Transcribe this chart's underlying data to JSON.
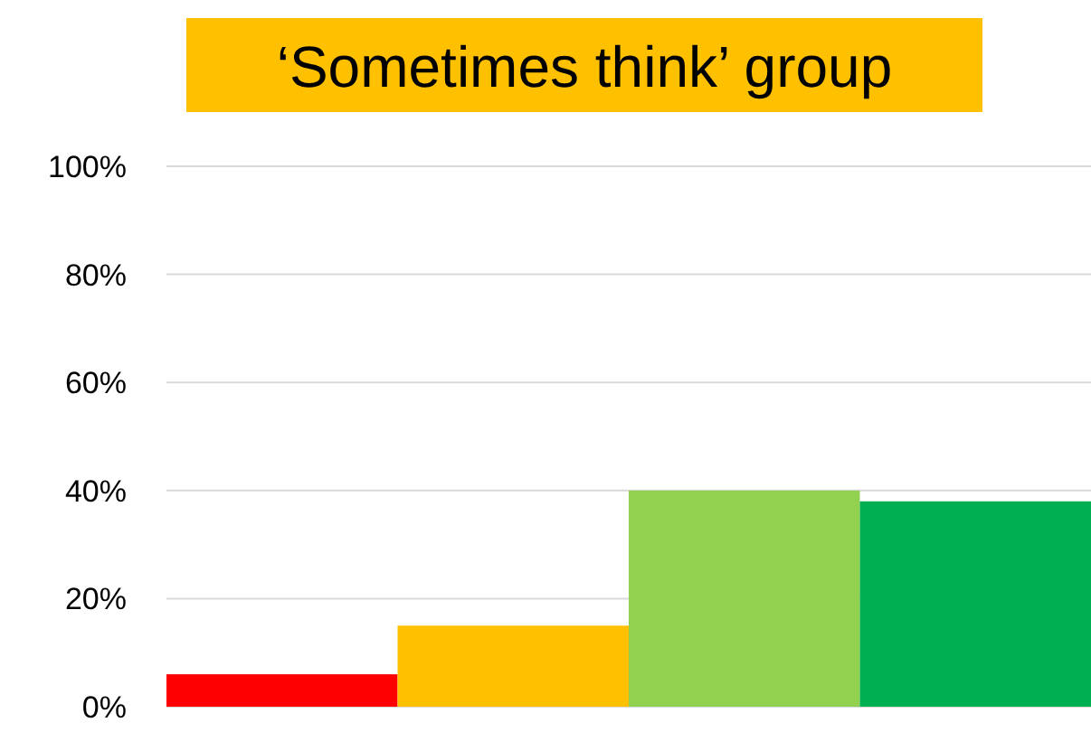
{
  "chart_data": {
    "type": "bar",
    "title": "‘Sometimes think’ group",
    "categories": [
      null,
      null,
      null,
      null
    ],
    "values": [
      6,
      15,
      40,
      38
    ],
    "colors": [
      "#ff0000",
      "#ffc000",
      "#92d050",
      "#00b050"
    ],
    "ylim": [
      0,
      100
    ],
    "yticks": [
      {
        "value": 0,
        "label": "0%"
      },
      {
        "value": 20,
        "label": "20%"
      },
      {
        "value": 40,
        "label": "40%"
      },
      {
        "value": 60,
        "label": "60%"
      },
      {
        "value": 80,
        "label": "80%"
      },
      {
        "value": 100,
        "label": "100%"
      }
    ],
    "grid": "y"
  }
}
